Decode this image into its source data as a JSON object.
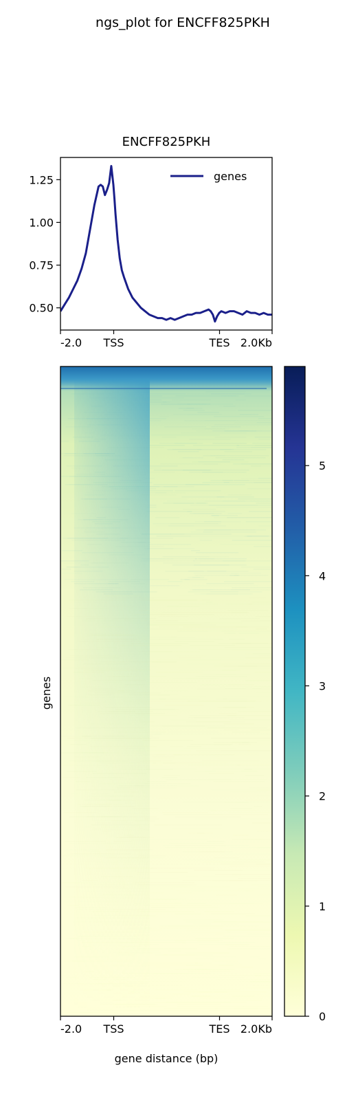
{
  "figure": {
    "suptitle": "ngs_plot for ENCFF825PKH"
  },
  "chart_data": [
    {
      "type": "line",
      "title": "ENCFF825PKH",
      "xlabel": "",
      "ylabel": "",
      "x_tick_labels": [
        "-2.0",
        "TSS",
        "TES",
        "2.0Kb"
      ],
      "y_ticks": [
        0.5,
        0.75,
        1.0,
        1.25
      ],
      "y_tick_labels": [
        "0.50",
        "0.75",
        "1.00",
        "1.25"
      ],
      "ylim": [
        0.37,
        1.38
      ],
      "xlim": [
        0,
        100
      ],
      "legend": {
        "placement": "upper right",
        "entries": [
          "genes"
        ]
      },
      "series": [
        {
          "name": "genes",
          "color": "#1a1f8a",
          "x": [
            0,
            2,
            4,
            6,
            8,
            10,
            12,
            14,
            16,
            18,
            19,
            20,
            21,
            22,
            23,
            24,
            25,
            25.5,
            26,
            27,
            28,
            29,
            30,
            32,
            34,
            36,
            38,
            40,
            42,
            44,
            46,
            48,
            50,
            52,
            54,
            56,
            58,
            60,
            62,
            64,
            66,
            68,
            70,
            71,
            72,
            73,
            74,
            75,
            76,
            78,
            80,
            82,
            84,
            86,
            88,
            90,
            92,
            94,
            96,
            98,
            100
          ],
          "values": [
            0.48,
            0.52,
            0.56,
            0.61,
            0.66,
            0.73,
            0.82,
            0.96,
            1.1,
            1.21,
            1.22,
            1.21,
            1.16,
            1.19,
            1.23,
            1.33,
            1.22,
            1.14,
            1.05,
            0.9,
            0.79,
            0.72,
            0.68,
            0.61,
            0.56,
            0.53,
            0.5,
            0.48,
            0.46,
            0.45,
            0.44,
            0.44,
            0.43,
            0.44,
            0.43,
            0.44,
            0.45,
            0.46,
            0.46,
            0.47,
            0.47,
            0.48,
            0.49,
            0.48,
            0.46,
            0.42,
            0.45,
            0.47,
            0.48,
            0.47,
            0.48,
            0.48,
            0.47,
            0.46,
            0.48,
            0.47,
            0.47,
            0.46,
            0.47,
            0.46,
            0.46
          ]
        }
      ]
    },
    {
      "type": "heatmap",
      "title": "",
      "xlabel": "gene distance (bp)",
      "ylabel": "genes",
      "x_tick_labels": [
        "-2.0",
        "TSS",
        "TES",
        "2.0Kb"
      ],
      "colorbar": {
        "colormap": "YlGnBu",
        "range": [
          0,
          5.9
        ],
        "ticks": [
          0,
          1,
          2,
          3,
          4,
          5
        ],
        "tick_labels": [
          "0",
          "1",
          "2",
          "3",
          "4",
          "5"
        ]
      },
      "pattern": "signal enriched at TSS and in top-ranked genes, decreasing down the sorted gene list"
    }
  ]
}
